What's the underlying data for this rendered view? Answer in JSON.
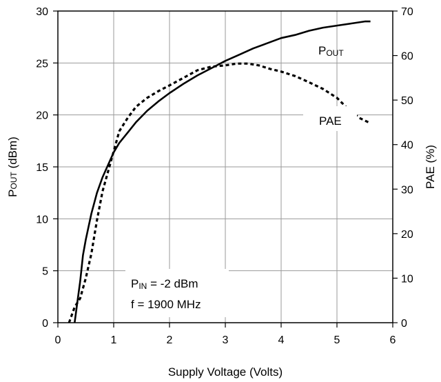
{
  "chart_data": {
    "type": "line",
    "xlabel": "Supply Voltage (Volts)",
    "ylabel_left": {
      "main": "P",
      "sub": "OUT",
      "unit": " (dBm)"
    },
    "ylabel_right": "PAE (%)",
    "xlim": [
      0,
      6
    ],
    "ylim_left": [
      0,
      30
    ],
    "ylim_right": [
      0,
      70
    ],
    "x_ticks": [
      "0",
      "1",
      "2",
      "3",
      "4",
      "5",
      "6"
    ],
    "y_left_ticks": [
      "0",
      "5",
      "10",
      "15",
      "20",
      "25",
      "30"
    ],
    "y_right_ticks": [
      "0",
      "10",
      "20",
      "30",
      "40",
      "50",
      "60",
      "70"
    ],
    "grid": true,
    "series": [
      {
        "name": {
          "main": "P",
          "sub": "OUT"
        },
        "axis": "left",
        "style": "solid",
        "x": [
          0.3,
          0.35,
          0.4,
          0.45,
          0.5,
          0.6,
          0.7,
          0.8,
          0.9,
          1.0,
          1.1,
          1.25,
          1.4,
          1.6,
          1.8,
          2.0,
          2.25,
          2.5,
          2.75,
          3.0,
          3.25,
          3.5,
          3.75,
          4.0,
          4.25,
          4.5,
          4.75,
          5.0,
          5.25,
          5.5,
          5.6
        ],
        "y": [
          0.0,
          2.0,
          4.0,
          6.5,
          8.0,
          10.5,
          12.5,
          14.0,
          15.2,
          16.4,
          17.3,
          18.3,
          19.3,
          20.4,
          21.3,
          22.1,
          23.0,
          23.8,
          24.5,
          25.2,
          25.8,
          26.4,
          26.9,
          27.4,
          27.7,
          28.1,
          28.4,
          28.6,
          28.8,
          29.0,
          29.0
        ]
      },
      {
        "name": "PAE",
        "axis": "right",
        "style": "dotted",
        "x": [
          0.2,
          0.3,
          0.4,
          0.5,
          0.6,
          0.7,
          0.8,
          0.9,
          1.0,
          1.1,
          1.25,
          1.4,
          1.6,
          1.8,
          2.0,
          2.25,
          2.5,
          2.75,
          3.0,
          3.2,
          3.4,
          3.6,
          3.8,
          4.0,
          4.25,
          4.5,
          4.75,
          5.0,
          5.2,
          5.4,
          5.6
        ],
        "y": [
          0.0,
          3.5,
          5.5,
          10.0,
          15.5,
          23.0,
          29.5,
          34.0,
          38.5,
          43.0,
          46.0,
          48.5,
          50.5,
          52.0,
          53.3,
          55.0,
          56.7,
          57.5,
          57.8,
          58.2,
          58.2,
          57.8,
          57.0,
          56.4,
          55.4,
          54.0,
          52.5,
          50.5,
          48.0,
          46.0,
          44.8
        ]
      }
    ],
    "annotations": {
      "pout_label": {
        "main": "P",
        "sub": "OUT"
      },
      "pae_label": "PAE",
      "pin_line": {
        "main": "P",
        "sub": "IN",
        "rest": " = -2 dBm"
      },
      "freq_line": "f = 1900 MHz"
    }
  }
}
